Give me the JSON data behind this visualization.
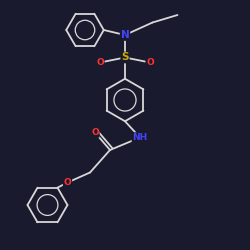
{
  "bg_color": "#1a1a2e",
  "bond_color": "#d8d8d8",
  "N_color": "#4444ff",
  "O_color": "#ff3333",
  "S_color": "#ccaa00",
  "font_size": 6.5,
  "bond_width": 1.3,
  "figsize": [
    2.5,
    2.5
  ],
  "dpi": 100,
  "xlim": [
    0,
    10
  ],
  "ylim": [
    0,
    10
  ]
}
